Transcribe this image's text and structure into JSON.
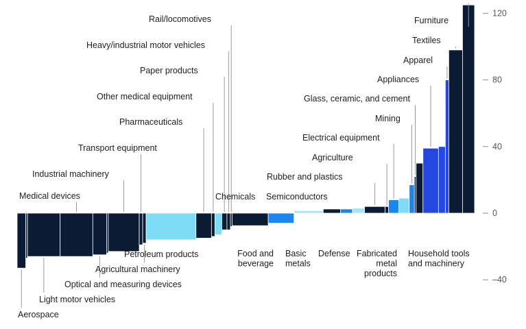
{
  "chart_data": {
    "type": "bar",
    "title": "",
    "xlabel": "",
    "ylabel": "",
    "ylim": [
      -55,
      125
    ],
    "y_ticks": [
      120,
      80,
      40,
      0,
      -40
    ],
    "y_tick_labels": [
      "120",
      "80",
      "40",
      "0",
      "–40"
    ],
    "grid": false,
    "legend": "none",
    "colors": {
      "dark": "#0b1b33",
      "light": "#7fdcf5",
      "blue": "#1c86ef",
      "royal": "#2447e0",
      "pale": "#a8e4f5"
    },
    "categories": [
      "Aerospace",
      "Light motor vehicles",
      "Medical devices",
      "Optical and measuring devices",
      "Industrial machinery",
      "Transport equipment",
      "Agricultural machinery",
      "Petroleum products",
      "Pharmaceuticals",
      "Other medical equipment",
      "Paper products",
      "Heavy/industrial motor vehicles",
      "Rail/locomotives",
      "Chemicals",
      "Food and beverage",
      "Basic metals",
      "Defense",
      "Agriculture",
      "Rubber and plastics",
      "Semiconductors",
      "Electrical equipment",
      "Fabricated metal products",
      "Glass, ceramic, and cement",
      "Mining",
      "Household tools and machinery",
      "Appliances",
      "Apparel",
      "Textiles",
      "Furniture"
    ],
    "bars": [
      {
        "name": "Aerospace",
        "value": -33,
        "width": 5,
        "color": "dark"
      },
      {
        "name": "",
        "value": -27,
        "width": 1,
        "color": "dark"
      },
      {
        "name": "Light motor vehicles",
        "value": -26,
        "width": 19,
        "color": "dark"
      },
      {
        "name": "Medical devices",
        "value": -26,
        "width": 19,
        "color": "dark"
      },
      {
        "name": "Optical and measuring devices",
        "value": -25,
        "width": 8,
        "color": "dark"
      },
      {
        "name": "",
        "value": -24,
        "width": 1,
        "color": "dark"
      },
      {
        "name": "Industrial machinery",
        "value": -23,
        "width": 18,
        "color": "dark"
      },
      {
        "name": "Transport equipment",
        "value": -19,
        "width": 2,
        "color": "dark"
      },
      {
        "name": "Agricultural machinery",
        "value": -18,
        "width": 2,
        "color": "dark"
      },
      {
        "name": "Petroleum products",
        "value": -16,
        "width": 29,
        "color": "light"
      },
      {
        "name": "Pharmaceuticals",
        "value": -15,
        "width": 9,
        "color": "dark"
      },
      {
        "name": "Other medical equipment",
        "value": -14,
        "width": 2,
        "color": "dark"
      },
      {
        "name": "",
        "value": -13,
        "width": 4,
        "color": "light"
      },
      {
        "name": "Paper products",
        "value": -10,
        "width": 3,
        "color": "dark"
      },
      {
        "name": "Heavy/industrial motor vehicles",
        "value": -10,
        "width": 2,
        "color": "dark"
      },
      {
        "name": "Rail/locomotives",
        "value": -8,
        "width": 1,
        "color": "dark"
      },
      {
        "name": "Chemicals",
        "value": -7.5,
        "width": 21,
        "color": "dark"
      },
      {
        "name": "Food and beverage",
        "value": -6,
        "width": 15,
        "color": "blue"
      },
      {
        "name": "Basic metals",
        "value": 1.5,
        "width": 17,
        "color": "pale"
      },
      {
        "name": "Defense",
        "value": 2.5,
        "width": 10,
        "color": "dark"
      },
      {
        "name": "Agriculture",
        "value": 2.5,
        "width": 7,
        "color": "blue"
      },
      {
        "name": "Rubber and plastics",
        "value": 3,
        "width": 7,
        "color": "pale"
      },
      {
        "name": "Semiconductors",
        "value": 4,
        "width": 12,
        "color": "dark"
      },
      {
        "name": "Electrical equipment",
        "value": 4,
        "width": 2,
        "color": "dark"
      },
      {
        "name": "Fabricated metal products",
        "value": 8,
        "width": 6,
        "color": "blue"
      },
      {
        "name": "Glass, ceramic, and cement",
        "value": 9,
        "width": 6,
        "color": "light"
      },
      {
        "name": "Mining",
        "value": 17,
        "width": 3,
        "color": "blue"
      },
      {
        "name": "",
        "value": 22,
        "width": 1,
        "color": "dark"
      },
      {
        "name": "Household tools and machinery",
        "value": 30,
        "width": 4,
        "color": "dark"
      },
      {
        "name": "Appliances",
        "value": 39,
        "width": 9,
        "color": "royal"
      },
      {
        "name": "",
        "value": 40,
        "width": 4,
        "color": "royal"
      },
      {
        "name": "Apparel",
        "value": 80,
        "width": 2,
        "color": "royal"
      },
      {
        "name": "Textiles",
        "value": 98,
        "width": 8,
        "color": "dark"
      },
      {
        "name": "Furniture",
        "value": 125,
        "width": 7,
        "color": "dark"
      }
    ],
    "labels": [
      {
        "text": "Aerospace",
        "bar": 0,
        "line": true
      },
      {
        "text": "Light motor vehicles",
        "bar": 2,
        "line": true
      },
      {
        "text": "Optical and measuring devices",
        "bar": 4,
        "line": true
      },
      {
        "text": "Agricultural machinery",
        "bar": 8,
        "line": true
      },
      {
        "text": "Petroleum products",
        "bar": 9,
        "line": false
      },
      {
        "text": "Medical devices",
        "bar": 3,
        "line": true
      },
      {
        "text": "Industrial machinery",
        "bar": 6,
        "line": true
      },
      {
        "text": "Transport equipment",
        "bar": 7,
        "line": true
      },
      {
        "text": "Pharmaceuticals",
        "bar": 10,
        "line": true
      },
      {
        "text": "Other medical equipment",
        "bar": 11,
        "line": true
      },
      {
        "text": "Paper products",
        "bar": 13,
        "line": true
      },
      {
        "text": "Heavy/industrial motor vehicles",
        "bar": 14,
        "line": true
      },
      {
        "text": "Rail/locomotives",
        "bar": 15,
        "line": true
      },
      {
        "text": "Chemicals",
        "bar": 16,
        "line": false
      },
      {
        "text": "Food and beverage",
        "bar": 17,
        "line": false
      },
      {
        "text": "Basic metals",
        "bar": 18,
        "line": false
      },
      {
        "text": "Defense",
        "bar": 19,
        "line": false
      },
      {
        "text": "Fabricated metal products",
        "bar": 24,
        "line": false
      },
      {
        "text": "Household tools and machinery",
        "bar": 28,
        "line": false
      },
      {
        "text": "Semiconductors",
        "bar": 21,
        "line": false
      },
      {
        "text": "Rubber and plastics",
        "bar": 22,
        "line": true
      },
      {
        "text": "Agriculture",
        "bar": 23,
        "line": true
      },
      {
        "text": "Electrical equipment",
        "bar": 24,
        "line": true
      },
      {
        "text": "Mining",
        "bar": 26,
        "line": true
      },
      {
        "text": "Glass, ceramic, and cement",
        "bar": 27,
        "line": true
      },
      {
        "text": "Appliances",
        "bar": 29,
        "line": true
      },
      {
        "text": "Apparel",
        "bar": 31,
        "line": true
      },
      {
        "text": "Textiles",
        "bar": 32,
        "line": true
      },
      {
        "text": "Furniture",
        "bar": 33,
        "line": true
      }
    ]
  }
}
